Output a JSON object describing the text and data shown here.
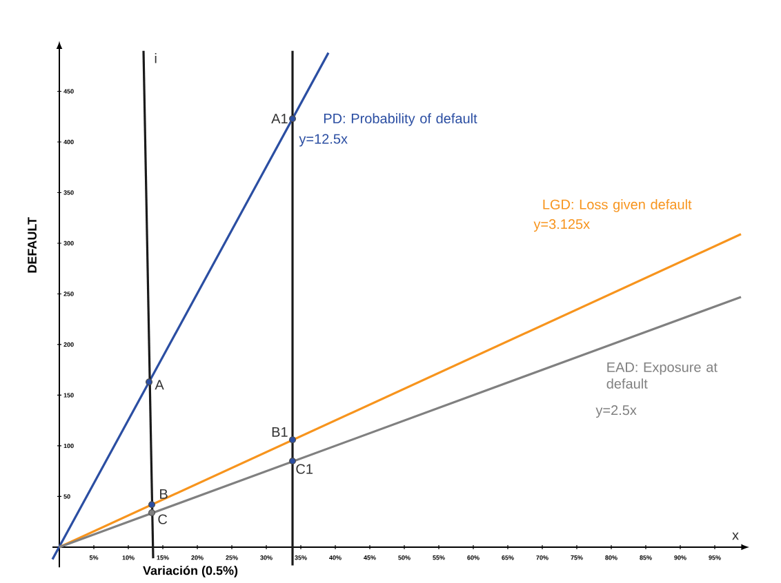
{
  "chart_data": {
    "type": "line",
    "xlabel": "Variación (0.5%)",
    "ylabel": "DEFAULT",
    "xlim": [
      -1,
      99
    ],
    "ylim": [
      -20,
      493
    ],
    "xticks": [
      {
        "value": 5,
        "label": "5%"
      },
      {
        "value": 10,
        "label": "10%"
      },
      {
        "value": 15,
        "label": "15%"
      },
      {
        "value": 20,
        "label": "20%"
      },
      {
        "value": 25,
        "label": "25%"
      },
      {
        "value": 30,
        "label": "30%"
      },
      {
        "value": 35,
        "label": "35%"
      },
      {
        "value": 40,
        "label": "40%"
      },
      {
        "value": 45,
        "label": "45%"
      },
      {
        "value": 50,
        "label": "50%"
      },
      {
        "value": 55,
        "label": "55%"
      },
      {
        "value": 60,
        "label": "60%"
      },
      {
        "value": 65,
        "label": "65%"
      },
      {
        "value": 70,
        "label": "70%"
      },
      {
        "value": 75,
        "label": "75%"
      },
      {
        "value": 80,
        "label": "80%"
      },
      {
        "value": 85,
        "label": "85%"
      },
      {
        "value": 90,
        "label": "90%"
      },
      {
        "value": 95,
        "label": "95%"
      }
    ],
    "yticks": [
      50,
      100,
      150,
      200,
      250,
      300,
      350,
      400,
      450
    ],
    "series": [
      {
        "name": "PD: Probability of default",
        "color": "#2b4ea2",
        "x": [
          -1,
          39
        ],
        "values": [
          -12,
          488
        ]
      },
      {
        "name": "LGD: Loss given default",
        "color": "#f7941d",
        "x": [
          0,
          98.8
        ],
        "values": [
          0,
          309
        ]
      },
      {
        "name": "EAD: Exposure at default",
        "color": "#808080",
        "x": [
          0,
          98.8
        ],
        "values": [
          0,
          247
        ]
      },
      {
        "color": "#1a1a1a",
        "x": [
          12.2,
          13.6
        ],
        "values": [
          490,
          -11
        ]
      },
      {
        "color": "#1a1a1a",
        "x": [
          33.8,
          33.8
        ],
        "values": [
          -18,
          490
        ]
      },
      {
        "type": "scatter",
        "marker": "circle",
        "x": [
          13,
          13.4,
          13.4,
          33.8,
          33.8,
          33.8
        ],
        "values": [
          163,
          42,
          34,
          423,
          106,
          85
        ],
        "colors": [
          "#2b4ea2",
          "#2b4ea2",
          "#808080",
          "#2b4ea2",
          "#2b4ea2",
          "#2b4ea2"
        ]
      }
    ],
    "annotations": [
      {
        "text": "A",
        "x": 13,
        "y": 163
      },
      {
        "text": "B",
        "x": 13.4,
        "y": 42
      },
      {
        "text": "C",
        "x": 13.4,
        "y": 34
      },
      {
        "text": "A1",
        "x": 33.8,
        "y": 423
      },
      {
        "text": "B1",
        "x": 33.8,
        "y": 106
      },
      {
        "text": "C1",
        "x": 33.8,
        "y": 85
      },
      "y=12.5x",
      "y=3.125x",
      "y=2.5x",
      "i",
      "x"
    ]
  }
}
